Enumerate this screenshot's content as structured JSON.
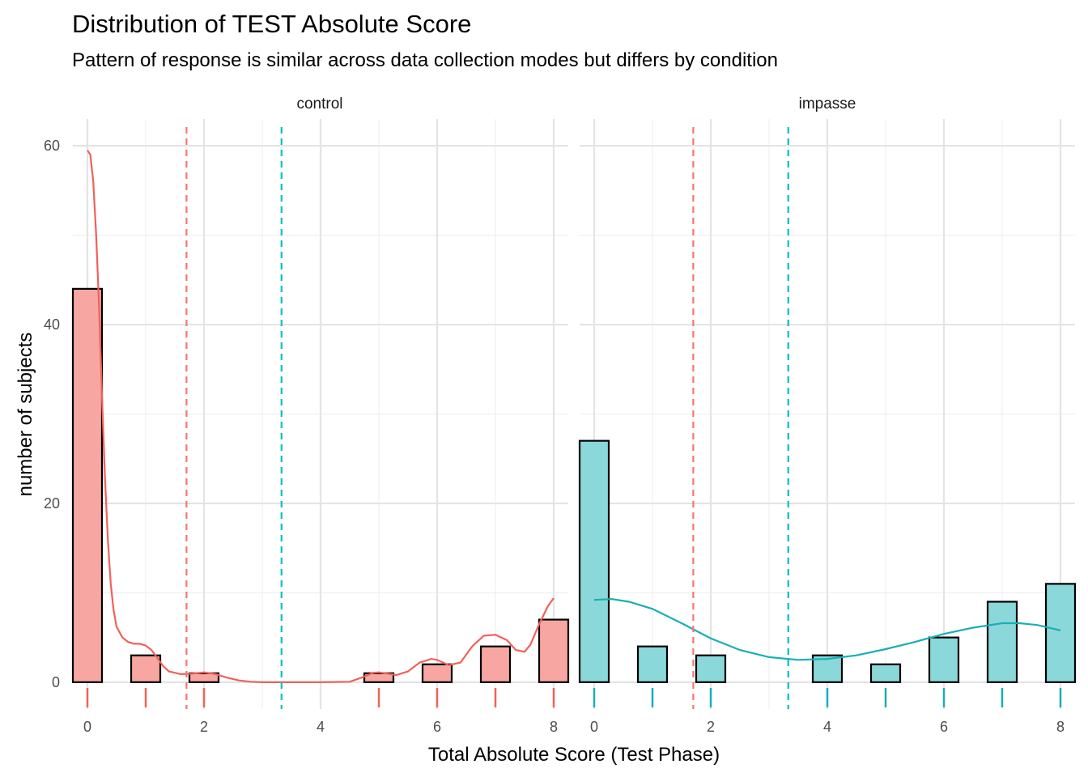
{
  "chart_data": {
    "type": "bar",
    "title": "Distribution of TEST Absolute Score",
    "subtitle": "Pattern of response is similar across data collection modes but differs by condition",
    "xlabel": "Total Absolute Score (Test Phase)",
    "ylabel": "number of subjects",
    "xlim": [
      -0.25,
      8.25
    ],
    "ylim": [
      0,
      60
    ],
    "x_ticks": [
      "0",
      "2",
      "4",
      "6",
      "8"
    ],
    "y_ticks": [
      "0",
      "20",
      "40",
      "60"
    ],
    "grid": true,
    "mean_lines": [
      {
        "x": 1.7,
        "color": "#F8766D"
      },
      {
        "x": 3.33,
        "color": "#00BFC4"
      }
    ],
    "panels": [
      {
        "name": "control",
        "fill": "#F8A6A1",
        "line_color": "#F0615A",
        "x": [
          0,
          1,
          2,
          3,
          4,
          5,
          6,
          7,
          8
        ],
        "values": [
          44,
          3,
          1,
          0,
          0,
          1,
          2,
          4,
          7
        ],
        "density": [
          [
            0,
            59.5
          ],
          [
            0.05,
            59
          ],
          [
            0.1,
            56
          ],
          [
            0.15,
            50
          ],
          [
            0.2,
            42
          ],
          [
            0.25,
            32
          ],
          [
            0.3,
            23
          ],
          [
            0.35,
            16
          ],
          [
            0.4,
            11
          ],
          [
            0.45,
            8
          ],
          [
            0.5,
            6.2
          ],
          [
            0.6,
            5
          ],
          [
            0.7,
            4.5
          ],
          [
            0.8,
            4.3
          ],
          [
            0.9,
            4.3
          ],
          [
            1.0,
            4.1
          ],
          [
            1.1,
            3.6
          ],
          [
            1.2,
            2.7
          ],
          [
            1.3,
            1.8
          ],
          [
            1.4,
            1.2
          ],
          [
            1.6,
            0.9
          ],
          [
            1.8,
            0.95
          ],
          [
            2.0,
            1.1
          ],
          [
            2.2,
            0.9
          ],
          [
            2.4,
            0.5
          ],
          [
            2.6,
            0.2
          ],
          [
            2.8,
            0.05
          ],
          [
            3.0,
            0
          ],
          [
            3.5,
            0
          ],
          [
            4.0,
            0
          ],
          [
            4.5,
            0.05
          ],
          [
            4.7,
            0.5
          ],
          [
            4.9,
            1.05
          ],
          [
            5.0,
            1.1
          ],
          [
            5.1,
            1.0
          ],
          [
            5.3,
            0.8
          ],
          [
            5.5,
            1.2
          ],
          [
            5.7,
            2.2
          ],
          [
            5.9,
            2.6
          ],
          [
            6.0,
            2.5
          ],
          [
            6.2,
            1.9
          ],
          [
            6.4,
            2.2
          ],
          [
            6.6,
            4.0
          ],
          [
            6.8,
            5.2
          ],
          [
            7.0,
            5.3
          ],
          [
            7.2,
            4.7
          ],
          [
            7.35,
            3.6
          ],
          [
            7.5,
            3.4
          ],
          [
            7.6,
            4.2
          ],
          [
            7.75,
            6.5
          ],
          [
            7.9,
            8.5
          ],
          [
            8.0,
            9.4
          ]
        ],
        "rug_x": [
          0,
          1,
          2,
          5,
          6,
          7,
          8
        ]
      },
      {
        "name": "impasse",
        "fill": "#8AD8DA",
        "line_color": "#19AFB6",
        "x": [
          0,
          1,
          2,
          3,
          4,
          5,
          6,
          7,
          8
        ],
        "values": [
          27,
          4,
          3,
          0,
          3,
          2,
          5,
          9,
          11
        ],
        "density": [
          [
            0,
            9.2
          ],
          [
            0.3,
            9.3
          ],
          [
            0.6,
            9.0
          ],
          [
            1.0,
            8.2
          ],
          [
            1.5,
            6.6
          ],
          [
            2.0,
            4.9
          ],
          [
            2.5,
            3.6
          ],
          [
            3.0,
            2.8
          ],
          [
            3.5,
            2.5
          ],
          [
            4.0,
            2.6
          ],
          [
            4.5,
            3.0
          ],
          [
            5.0,
            3.7
          ],
          [
            5.5,
            4.5
          ],
          [
            6.0,
            5.4
          ],
          [
            6.5,
            6.1
          ],
          [
            7.0,
            6.6
          ],
          [
            7.3,
            6.6
          ],
          [
            7.6,
            6.4
          ],
          [
            8.0,
            5.8
          ]
        ],
        "rug_x": [
          0,
          1,
          2,
          4,
          5,
          6,
          7,
          8
        ]
      }
    ]
  }
}
